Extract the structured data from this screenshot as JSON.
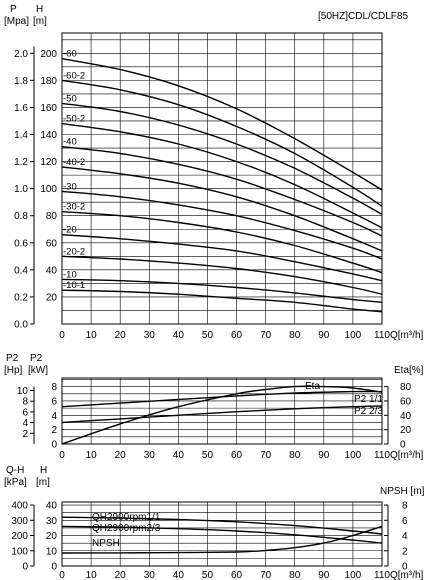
{
  "chart_data": [
    {
      "type": "line",
      "title": "[50HZ]CDL/CDLF85",
      "left_axis_units": [
        "P",
        "[Mpa]"
      ],
      "right_axis_units": [
        "H",
        "[m]"
      ],
      "xlabel": "Q[m³/h]",
      "x_ticks": [
        0,
        10,
        20,
        30,
        40,
        50,
        60,
        70,
        80,
        90,
        100,
        110
      ],
      "xlim": [
        0,
        110
      ],
      "y_ticks_mpa": [
        "0.0",
        "0.2",
        "0.4",
        "0.6",
        "0.8",
        "1.0",
        "1.2",
        "1.4",
        "1.6",
        "1.8",
        "2.0"
      ],
      "y_ticks_m": [
        20,
        40,
        60,
        80,
        100,
        120,
        140,
        160,
        180,
        200
      ],
      "ylim_m": [
        0,
        215
      ],
      "grid": true,
      "series": [
        {
          "name": "-60",
          "x": [
            0,
            20,
            40,
            60,
            80,
            100,
            110
          ],
          "y": [
            196,
            188,
            176,
            159,
            137,
            112,
            99
          ]
        },
        {
          "name": "-60-2",
          "x": [
            0,
            20,
            40,
            60,
            80,
            100,
            110
          ],
          "y": [
            180,
            173,
            162,
            146,
            126,
            101,
            87
          ]
        },
        {
          "name": "-50",
          "x": [
            0,
            20,
            40,
            60,
            80,
            100,
            110
          ],
          "y": [
            163,
            157,
            147,
            133,
            115,
            93,
            81
          ]
        },
        {
          "name": "-50-2",
          "x": [
            0,
            20,
            40,
            60,
            80,
            100,
            110
          ],
          "y": [
            148,
            142,
            133,
            120,
            103,
            82,
            71
          ]
        },
        {
          "name": "-40",
          "x": [
            0,
            20,
            40,
            60,
            80,
            100,
            110
          ],
          "y": [
            131,
            126,
            118,
            107,
            92,
            75,
            65
          ]
        },
        {
          "name": "-40-2",
          "x": [
            0,
            20,
            40,
            60,
            80,
            100,
            110
          ],
          "y": [
            116,
            111,
            104,
            94,
            80,
            63,
            54
          ]
        },
        {
          "name": "-30",
          "x": [
            0,
            20,
            40,
            60,
            80,
            100,
            110
          ],
          "y": [
            98,
            94,
            88,
            80,
            69,
            56,
            48
          ]
        },
        {
          "name": "-30-2",
          "x": [
            0,
            20,
            40,
            60,
            80,
            100,
            110
          ],
          "y": [
            83,
            80,
            75,
            68,
            58,
            45,
            38
          ]
        },
        {
          "name": "-20",
          "x": [
            0,
            20,
            40,
            60,
            80,
            100,
            110
          ],
          "y": [
            66,
            63,
            59,
            54,
            46,
            37,
            32
          ]
        },
        {
          "name": "-20-2",
          "x": [
            0,
            20,
            40,
            60,
            80,
            100,
            110
          ],
          "y": [
            50,
            48,
            45,
            41,
            35,
            27,
            22
          ]
        },
        {
          "name": "-10",
          "x": [
            0,
            20,
            40,
            60,
            80,
            100,
            110
          ],
          "y": [
            33,
            32,
            30,
            27,
            23,
            18,
            16
          ]
        },
        {
          "name": "-10-1",
          "x": [
            0,
            20,
            40,
            60,
            80,
            100,
            110
          ],
          "y": [
            25,
            24,
            22,
            19,
            16,
            11,
            9
          ]
        }
      ]
    },
    {
      "type": "line",
      "left_axis_units": [
        "P2",
        "[Hp]"
      ],
      "left_axis_units_2": [
        "P2",
        "[kW]"
      ],
      "right_axis_units": [
        "Eta[%]"
      ],
      "xlabel": "Q[m³/h]",
      "x_ticks": [
        0,
        10,
        20,
        30,
        40,
        50,
        60,
        70,
        80,
        90,
        100,
        110
      ],
      "xlim": [
        0,
        110
      ],
      "y_ticks_hp": [
        2,
        4,
        6,
        8,
        10
      ],
      "y_ticks_kw": [
        0,
        2,
        4,
        6,
        8
      ],
      "y_ticks_eta": [
        0,
        20,
        40,
        60,
        80
      ],
      "ylim_kw": [
        0,
        9.2
      ],
      "grid": true,
      "series": [
        {
          "name": "Eta",
          "x": [
            0,
            20,
            40,
            60,
            70,
            80,
            90,
            100,
            110
          ],
          "y_eta": [
            0,
            28,
            52,
            70,
            76,
            80,
            80,
            78,
            72
          ]
        },
        {
          "name": "P2 1/1",
          "x": [
            0,
            20,
            40,
            60,
            80,
            100,
            110
          ],
          "y_kw": [
            5.2,
            5.7,
            6.2,
            6.7,
            7.1,
            7.3,
            7.3
          ]
        },
        {
          "name": "P2 2/3",
          "x": [
            0,
            20,
            40,
            60,
            80,
            100,
            110
          ],
          "y_kw": [
            3.0,
            3.5,
            4.0,
            4.5,
            4.9,
            5.2,
            5.3
          ]
        }
      ]
    },
    {
      "type": "line",
      "left_axis_units": [
        "Q-H",
        "[kPa]"
      ],
      "left_axis_units_2": [
        "H",
        "[m]"
      ],
      "right_axis_units": [
        "NPSH [m]"
      ],
      "xlabel": "Q[m³/h]",
      "x_ticks": [
        0,
        10,
        20,
        30,
        40,
        50,
        60,
        70,
        80,
        90,
        100,
        110
      ],
      "xlim": [
        0,
        110
      ],
      "y_ticks_kpa": [
        0,
        100,
        200,
        300,
        400
      ],
      "y_ticks_m": [
        0,
        10,
        20,
        30,
        40
      ],
      "y_ticks_npsh": [
        0,
        2,
        4,
        6,
        8
      ],
      "ylim_m": [
        0,
        42
      ],
      "grid": true,
      "series": [
        {
          "name": "QH2900rpm1/1",
          "x": [
            0,
            20,
            40,
            60,
            80,
            100,
            110
          ],
          "y_m": [
            32,
            31.5,
            30.5,
            29,
            26.5,
            23,
            21
          ]
        },
        {
          "name": "QH2900rpm2/3",
          "x": [
            0,
            20,
            40,
            60,
            80,
            100,
            110
          ],
          "y_m": [
            26,
            25.5,
            24.5,
            23,
            20.5,
            17,
            15
          ]
        },
        {
          "name": "NPSH",
          "x": [
            0,
            20,
            40,
            60,
            70,
            80,
            90,
            100,
            110
          ],
          "y_m": [
            8.5,
            8.6,
            8.8,
            9.2,
            10.2,
            12,
            15,
            20,
            26
          ]
        }
      ]
    }
  ]
}
